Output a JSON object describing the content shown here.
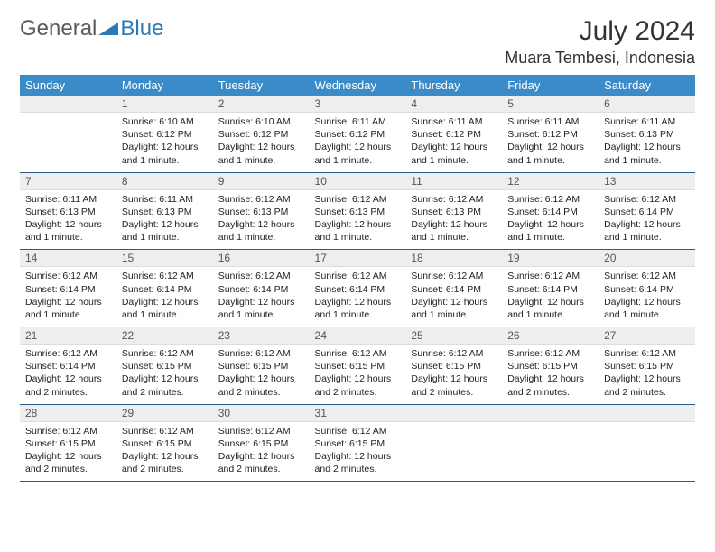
{
  "logo": {
    "text1": "General",
    "text2": "Blue"
  },
  "title": "July 2024",
  "location": "Muara Tembesi, Indonesia",
  "colors": {
    "header_bg": "#3b8bc9",
    "header_text": "#ffffff",
    "daynum_bg": "#eeeeee",
    "border": "#2a5a8a",
    "logo_gray": "#5a5a5a",
    "logo_blue": "#2a7ab8"
  },
  "day_names": [
    "Sunday",
    "Monday",
    "Tuesday",
    "Wednesday",
    "Thursday",
    "Friday",
    "Saturday"
  ],
  "weeks": [
    [
      {
        "num": "",
        "sunrise": "",
        "sunset": "",
        "daylight": ""
      },
      {
        "num": "1",
        "sunrise": "Sunrise: 6:10 AM",
        "sunset": "Sunset: 6:12 PM",
        "daylight": "Daylight: 12 hours and 1 minute."
      },
      {
        "num": "2",
        "sunrise": "Sunrise: 6:10 AM",
        "sunset": "Sunset: 6:12 PM",
        "daylight": "Daylight: 12 hours and 1 minute."
      },
      {
        "num": "3",
        "sunrise": "Sunrise: 6:11 AM",
        "sunset": "Sunset: 6:12 PM",
        "daylight": "Daylight: 12 hours and 1 minute."
      },
      {
        "num": "4",
        "sunrise": "Sunrise: 6:11 AM",
        "sunset": "Sunset: 6:12 PM",
        "daylight": "Daylight: 12 hours and 1 minute."
      },
      {
        "num": "5",
        "sunrise": "Sunrise: 6:11 AM",
        "sunset": "Sunset: 6:12 PM",
        "daylight": "Daylight: 12 hours and 1 minute."
      },
      {
        "num": "6",
        "sunrise": "Sunrise: 6:11 AM",
        "sunset": "Sunset: 6:13 PM",
        "daylight": "Daylight: 12 hours and 1 minute."
      }
    ],
    [
      {
        "num": "7",
        "sunrise": "Sunrise: 6:11 AM",
        "sunset": "Sunset: 6:13 PM",
        "daylight": "Daylight: 12 hours and 1 minute."
      },
      {
        "num": "8",
        "sunrise": "Sunrise: 6:11 AM",
        "sunset": "Sunset: 6:13 PM",
        "daylight": "Daylight: 12 hours and 1 minute."
      },
      {
        "num": "9",
        "sunrise": "Sunrise: 6:12 AM",
        "sunset": "Sunset: 6:13 PM",
        "daylight": "Daylight: 12 hours and 1 minute."
      },
      {
        "num": "10",
        "sunrise": "Sunrise: 6:12 AM",
        "sunset": "Sunset: 6:13 PM",
        "daylight": "Daylight: 12 hours and 1 minute."
      },
      {
        "num": "11",
        "sunrise": "Sunrise: 6:12 AM",
        "sunset": "Sunset: 6:13 PM",
        "daylight": "Daylight: 12 hours and 1 minute."
      },
      {
        "num": "12",
        "sunrise": "Sunrise: 6:12 AM",
        "sunset": "Sunset: 6:14 PM",
        "daylight": "Daylight: 12 hours and 1 minute."
      },
      {
        "num": "13",
        "sunrise": "Sunrise: 6:12 AM",
        "sunset": "Sunset: 6:14 PM",
        "daylight": "Daylight: 12 hours and 1 minute."
      }
    ],
    [
      {
        "num": "14",
        "sunrise": "Sunrise: 6:12 AM",
        "sunset": "Sunset: 6:14 PM",
        "daylight": "Daylight: 12 hours and 1 minute."
      },
      {
        "num": "15",
        "sunrise": "Sunrise: 6:12 AM",
        "sunset": "Sunset: 6:14 PM",
        "daylight": "Daylight: 12 hours and 1 minute."
      },
      {
        "num": "16",
        "sunrise": "Sunrise: 6:12 AM",
        "sunset": "Sunset: 6:14 PM",
        "daylight": "Daylight: 12 hours and 1 minute."
      },
      {
        "num": "17",
        "sunrise": "Sunrise: 6:12 AM",
        "sunset": "Sunset: 6:14 PM",
        "daylight": "Daylight: 12 hours and 1 minute."
      },
      {
        "num": "18",
        "sunrise": "Sunrise: 6:12 AM",
        "sunset": "Sunset: 6:14 PM",
        "daylight": "Daylight: 12 hours and 1 minute."
      },
      {
        "num": "19",
        "sunrise": "Sunrise: 6:12 AM",
        "sunset": "Sunset: 6:14 PM",
        "daylight": "Daylight: 12 hours and 1 minute."
      },
      {
        "num": "20",
        "sunrise": "Sunrise: 6:12 AM",
        "sunset": "Sunset: 6:14 PM",
        "daylight": "Daylight: 12 hours and 1 minute."
      }
    ],
    [
      {
        "num": "21",
        "sunrise": "Sunrise: 6:12 AM",
        "sunset": "Sunset: 6:14 PM",
        "daylight": "Daylight: 12 hours and 2 minutes."
      },
      {
        "num": "22",
        "sunrise": "Sunrise: 6:12 AM",
        "sunset": "Sunset: 6:15 PM",
        "daylight": "Daylight: 12 hours and 2 minutes."
      },
      {
        "num": "23",
        "sunrise": "Sunrise: 6:12 AM",
        "sunset": "Sunset: 6:15 PM",
        "daylight": "Daylight: 12 hours and 2 minutes."
      },
      {
        "num": "24",
        "sunrise": "Sunrise: 6:12 AM",
        "sunset": "Sunset: 6:15 PM",
        "daylight": "Daylight: 12 hours and 2 minutes."
      },
      {
        "num": "25",
        "sunrise": "Sunrise: 6:12 AM",
        "sunset": "Sunset: 6:15 PM",
        "daylight": "Daylight: 12 hours and 2 minutes."
      },
      {
        "num": "26",
        "sunrise": "Sunrise: 6:12 AM",
        "sunset": "Sunset: 6:15 PM",
        "daylight": "Daylight: 12 hours and 2 minutes."
      },
      {
        "num": "27",
        "sunrise": "Sunrise: 6:12 AM",
        "sunset": "Sunset: 6:15 PM",
        "daylight": "Daylight: 12 hours and 2 minutes."
      }
    ],
    [
      {
        "num": "28",
        "sunrise": "Sunrise: 6:12 AM",
        "sunset": "Sunset: 6:15 PM",
        "daylight": "Daylight: 12 hours and 2 minutes."
      },
      {
        "num": "29",
        "sunrise": "Sunrise: 6:12 AM",
        "sunset": "Sunset: 6:15 PM",
        "daylight": "Daylight: 12 hours and 2 minutes."
      },
      {
        "num": "30",
        "sunrise": "Sunrise: 6:12 AM",
        "sunset": "Sunset: 6:15 PM",
        "daylight": "Daylight: 12 hours and 2 minutes."
      },
      {
        "num": "31",
        "sunrise": "Sunrise: 6:12 AM",
        "sunset": "Sunset: 6:15 PM",
        "daylight": "Daylight: 12 hours and 2 minutes."
      },
      {
        "num": "",
        "sunrise": "",
        "sunset": "",
        "daylight": ""
      },
      {
        "num": "",
        "sunrise": "",
        "sunset": "",
        "daylight": ""
      },
      {
        "num": "",
        "sunrise": "",
        "sunset": "",
        "daylight": ""
      }
    ]
  ]
}
